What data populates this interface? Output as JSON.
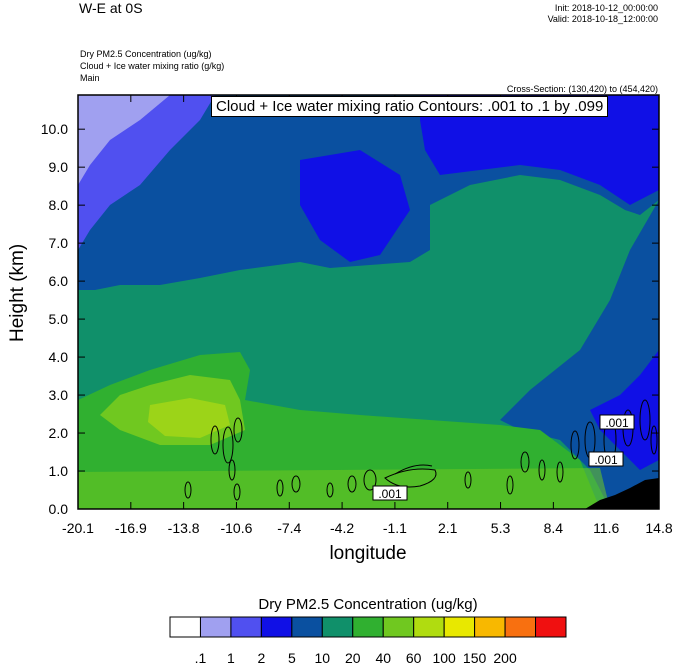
{
  "header": {
    "title": "W-E at 0S",
    "init": "Init: 2018-10-12_00:00:00",
    "valid": "Valid: 2018-10-18_12:00:00",
    "sublines": [
      "Dry PM2.5 Concentration   (ug/kg)",
      "Cloud + Ice water mixing ratio   (g/kg)",
      "Main"
    ],
    "cross_section": "Cross-Section: (130,420) to (454,420)",
    "contour_info": "Cloud + Ice water mixing ratio Contours: .001 to .1 by .099"
  },
  "chart_data": {
    "type": "heatmap",
    "xlabel": "longitude",
    "ylabel": "Height (km)",
    "x_ticks": [
      "-20.1",
      "-16.9",
      "-13.8",
      "-10.6",
      "-7.4",
      "-4.2",
      "-1.1",
      "2.1",
      "5.3",
      "8.4",
      "11.6",
      "14.8"
    ],
    "y_ticks": [
      "0.0",
      "1.0",
      "2.0",
      "3.0",
      "4.0",
      "5.0",
      "6.0",
      "7.0",
      "8.0",
      "9.0",
      "10.0"
    ],
    "xlim": [
      -20.1,
      14.8
    ],
    "ylim": [
      0.0,
      10.9
    ],
    "colorbar": {
      "title": "Dry PM2.5 Concentration  (ug/kg)",
      "levels": [
        ".1",
        "1",
        "2",
        "5",
        "10",
        "20",
        "40",
        "60",
        "100",
        "150",
        "200"
      ],
      "colors": [
        "#ffffff",
        "#a0a0f0",
        "#5050f0",
        "#1010e6",
        "#0a50a0",
        "#10906a",
        "#30b030",
        "#70c820",
        "#b0dc10",
        "#e8e800",
        "#f8b800",
        "#f87010",
        "#f01010"
      ]
    },
    "contour_labels": [
      ".001",
      ".001",
      ".001"
    ]
  },
  "colors": {
    "terrain": "#000000",
    "frame": "#000000"
  }
}
